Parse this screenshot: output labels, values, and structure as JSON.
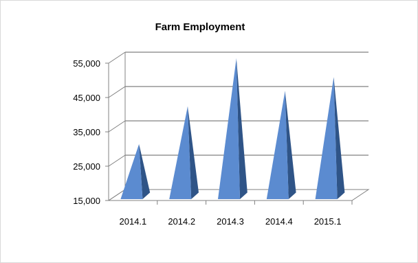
{
  "chart_data": {
    "type": "bar",
    "title": "Farm Employment",
    "categories": [
      "2014.1",
      "2014.2",
      "2014.3",
      "2014.4",
      "2015.1"
    ],
    "series": [
      {
        "values": [
          30000,
          41000,
          55000,
          45500,
          49500
        ]
      }
    ],
    "yticks": [
      "15,000",
      "25,000",
      "35,000",
      "45,000",
      "55,000"
    ],
    "ylim": [
      15000,
      55000
    ],
    "grid": true,
    "legend": "none",
    "bar_shape": "3d-cone",
    "colors": {
      "front": "#5b8bd0",
      "side": "#2f5487",
      "grid": "#808080",
      "floor": "#808080"
    }
  }
}
